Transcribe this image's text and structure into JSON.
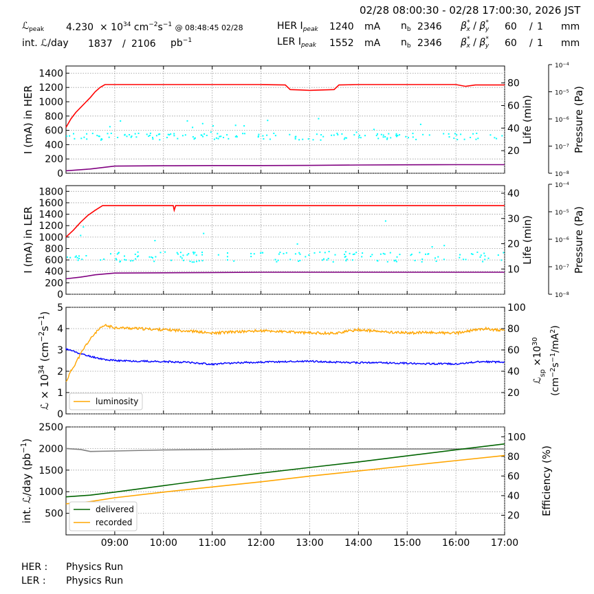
{
  "header": {
    "time_range": "02/28 08:00:30 - 02/28 17:00:30, 2026 JST",
    "lpeak_label": "peak",
    "lpeak_value": "4.230",
    "lpeak_exp": "34",
    "lpeak_units": "cm",
    "lpeak_units_exp1": "−2",
    "lpeak_units_s": "s",
    "lpeak_units_exp2": "−1",
    "lpeak_time": "@ 08:48:45 02/28",
    "int_label": "int.",
    "int_suffix": "/day",
    "int_value": "1837",
    "int_sep": "/",
    "int_total": "2106",
    "int_units": "pb",
    "int_units_exp": "−1",
    "her_label": "HER I",
    "her_sub": "peak",
    "her_value": "1240",
    "ler_label": "LER I",
    "ler_sub": "peak",
    "ler_value": "1552",
    "current_units": "mA",
    "nb_label": "n",
    "nb_sub": "b",
    "her_nb": "2346",
    "ler_nb": "2346",
    "her_beta_x": "60",
    "her_beta_y": "1",
    "ler_beta_x": "60",
    "ler_beta_y": "1",
    "beta_units": "mm",
    "beta_sep": "/"
  },
  "footer": {
    "her_label": "HER :",
    "her_status": "Physics Run",
    "ler_label": "LER :",
    "ler_status": "Physics Run"
  },
  "colors": {
    "current": "#ff0000",
    "pressure": "#800080",
    "life": "#00ffff",
    "luminosity": "#ffa500",
    "specific_lumi": "#0000ff",
    "delivered": "#006400",
    "recorded": "#ffa500",
    "efficiency": "#808080",
    "grid": "#999999"
  },
  "chart_data": [
    {
      "type": "line",
      "name": "her",
      "ylabel": "I (mA) in HER",
      "y2label": "Life (min)",
      "y3label": "Pressure (Pa)",
      "ylim": [
        0,
        1500
      ],
      "yticks": [
        0,
        200,
        400,
        600,
        800,
        1000,
        1200,
        1400
      ],
      "y2lim": [
        0,
        95
      ],
      "y2ticks": [
        20,
        40,
        60,
        80
      ],
      "y3log": [
        -8,
        -4
      ],
      "xlim": [
        8.0,
        17.0
      ],
      "xticks": [
        "09:00",
        "10:00",
        "11:00",
        "12:00",
        "13:00",
        "14:00",
        "15:00",
        "16:00",
        "17:00"
      ],
      "grid": true,
      "series": [
        {
          "role": "current",
          "x": [
            8.0,
            8.1,
            8.2,
            8.3,
            8.4,
            8.5,
            8.6,
            8.7,
            8.8,
            9.0,
            10.0,
            11.0,
            12.0,
            12.5,
            12.6,
            12.8,
            13.0,
            13.5,
            13.6,
            14.0,
            15.0,
            16.0,
            16.2,
            16.4,
            17.0
          ],
          "y": [
            640,
            760,
            850,
            920,
            990,
            1060,
            1140,
            1200,
            1240,
            1240,
            1240,
            1240,
            1240,
            1235,
            1170,
            1165,
            1160,
            1170,
            1235,
            1240,
            1240,
            1240,
            1215,
            1235,
            1235
          ]
        },
        {
          "role": "pressure",
          "x": [
            8.0,
            8.5,
            9.0,
            10.0,
            11.0,
            12.0,
            13.0,
            14.0,
            15.0,
            16.0,
            17.0
          ],
          "y": [
            35,
            60,
            100,
            105,
            108,
            108,
            110,
            115,
            118,
            120,
            120
          ]
        }
      ]
    },
    {
      "type": "line",
      "name": "ler",
      "ylabel": "I (mA) in LER",
      "y2label": "Life (min)",
      "y3label": "Pressure (Pa)",
      "ylim": [
        0,
        1900
      ],
      "yticks": [
        0,
        200,
        400,
        600,
        800,
        1000,
        1200,
        1400,
        1600,
        1800
      ],
      "y2lim": [
        0,
        43
      ],
      "y2ticks": [
        10,
        20,
        30,
        40
      ],
      "y3log": [
        -8,
        -4
      ],
      "xlim": [
        8.0,
        17.0
      ],
      "xticks": [
        "09:00",
        "10:00",
        "11:00",
        "12:00",
        "13:00",
        "14:00",
        "15:00",
        "16:00",
        "17:00"
      ],
      "grid": true,
      "series": [
        {
          "role": "current",
          "x": [
            8.0,
            8.15,
            8.3,
            8.45,
            8.6,
            8.75,
            9.0,
            10.2,
            10.22,
            10.25,
            11.0,
            12.0,
            13.0,
            14.0,
            15.0,
            16.0,
            17.0
          ],
          "y": [
            1000,
            1120,
            1260,
            1380,
            1470,
            1550,
            1550,
            1550,
            1470,
            1550,
            1550,
            1550,
            1550,
            1550,
            1550,
            1550,
            1550
          ]
        },
        {
          "role": "pressure",
          "x": [
            8.0,
            8.3,
            8.6,
            9.0,
            10.0,
            11.0,
            12.0,
            13.0,
            14.0,
            15.0,
            16.0,
            17.0
          ],
          "y": [
            270,
            300,
            340,
            370,
            375,
            380,
            385,
            385,
            385,
            385,
            385,
            385
          ]
        }
      ]
    },
    {
      "type": "line",
      "name": "luminosity",
      "ylabel": "× 10",
      "ylabel_exp": "34",
      "ylabel_units": "(cm",
      "ylabel_units_exp1": "−2",
      "ylabel_units_s": "s",
      "ylabel_units_exp2": "−1",
      "ylabel_units_close": ")",
      "y2label": "sp",
      "y2label_mult": "×10",
      "y2label_exp": "30",
      "y2label_units": "(cm",
      "y2label_units_exp1": "−2",
      "y2label_units_s": "s",
      "y2label_units_exp2": "−1",
      "y2label_units_tail": "/mA",
      "y2label_units_exp3": "2",
      "y2label_units_close": ")",
      "ylim": [
        0,
        5
      ],
      "yticks": [
        0,
        1,
        2,
        3,
        4,
        5
      ],
      "y2lim": [
        0,
        100
      ],
      "y2ticks": [
        20,
        40,
        60,
        80,
        100
      ],
      "xlim": [
        8.0,
        17.0
      ],
      "xticks": [
        "09:00",
        "10:00",
        "11:00",
        "12:00",
        "13:00",
        "14:00",
        "15:00",
        "16:00",
        "17:00"
      ],
      "grid": true,
      "legend": {
        "label": "luminosity",
        "placement": "lower-left"
      },
      "series": [
        {
          "role": "luminosity",
          "x": [
            8.0,
            8.1,
            8.2,
            8.3,
            8.4,
            8.5,
            8.6,
            8.7,
            8.8,
            9.0,
            9.5,
            10.0,
            10.5,
            11.0,
            11.2,
            11.5,
            12.0,
            12.5,
            13.0,
            13.5,
            14.0,
            14.5,
            15.0,
            15.5,
            16.0,
            16.3,
            16.6,
            17.0
          ],
          "y": [
            1.5,
            2.0,
            2.4,
            2.8,
            3.2,
            3.5,
            3.8,
            4.0,
            4.15,
            4.05,
            4.0,
            3.95,
            3.9,
            3.78,
            3.82,
            3.85,
            3.9,
            3.85,
            3.8,
            3.78,
            3.95,
            3.85,
            3.8,
            3.82,
            3.78,
            3.9,
            4.0,
            3.9
          ]
        },
        {
          "role": "specific_lumi",
          "x": [
            8.0,
            8.2,
            8.4,
            8.6,
            8.8,
            9.0,
            9.5,
            10.0,
            10.5,
            11.0,
            11.5,
            12.0,
            12.5,
            13.0,
            13.5,
            14.0,
            14.5,
            15.0,
            15.5,
            16.0,
            16.5,
            17.0
          ],
          "y": [
            61,
            58,
            55,
            53,
            51,
            50,
            49.5,
            49,
            48.5,
            46.5,
            48,
            48.5,
            49,
            49.5,
            48.5,
            48,
            48,
            47.5,
            47,
            47,
            49,
            48.5
          ]
        }
      ]
    },
    {
      "type": "line",
      "name": "integrated",
      "ylabel_prefix": "int.",
      "ylabel_suffix": "/day (pb",
      "ylabel_exp": "−1",
      "ylabel_close": ")",
      "y2label": "Efficiency (%)",
      "ylim": [
        0,
        2500
      ],
      "yticks": [
        500,
        1000,
        1500,
        2000,
        2500
      ],
      "y2lim": [
        0,
        110
      ],
      "y2ticks": [
        20,
        40,
        60,
        80,
        100
      ],
      "xlim": [
        8.0,
        17.0
      ],
      "xticks": [
        "09:00",
        "10:00",
        "11:00",
        "12:00",
        "13:00",
        "14:00",
        "15:00",
        "16:00",
        "17:00"
      ],
      "grid": true,
      "legend": {
        "placement": "lower-left"
      },
      "series": [
        {
          "name": "delivered",
          "role": "delivered",
          "x": [
            8.0,
            8.5,
            9.0,
            10.0,
            11.0,
            12.0,
            13.0,
            14.0,
            15.0,
            16.0,
            17.0
          ],
          "y": [
            880,
            920,
            990,
            1140,
            1290,
            1430,
            1560,
            1690,
            1830,
            1970,
            2106
          ]
        },
        {
          "name": "recorded",
          "role": "recorded",
          "x": [
            8.0,
            8.5,
            9.0,
            10.0,
            11.0,
            12.0,
            13.0,
            14.0,
            15.0,
            16.0,
            17.0
          ],
          "y": [
            720,
            770,
            860,
            990,
            1110,
            1230,
            1360,
            1480,
            1600,
            1720,
            1837
          ]
        },
        {
          "role": "efficiency",
          "x": [
            8.0,
            8.3,
            8.5,
            9.0,
            10.0,
            11.0,
            12.0,
            13.0,
            14.0,
            15.0,
            16.0,
            17.0
          ],
          "y": [
            88,
            87,
            85,
            85.5,
            86.5,
            87,
            87.5,
            87.5,
            87.5,
            87.5,
            87.5,
            87.5
          ]
        }
      ]
    }
  ]
}
